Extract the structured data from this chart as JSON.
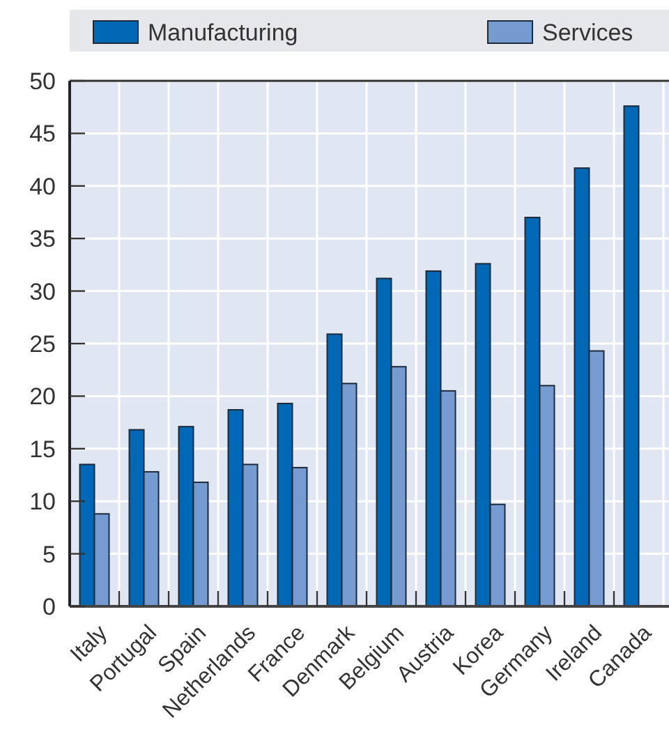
{
  "chart_data": {
    "type": "bar",
    "categories": [
      "Italy",
      "Portugal",
      "Spain",
      "Netherlands",
      "France",
      "Denmark",
      "Belgium",
      "Austria",
      "Korea",
      "Germany",
      "Ireland",
      "Canada"
    ],
    "series": [
      {
        "name": "Manufacturing",
        "color": "#0068b4",
        "values": [
          13.5,
          16.8,
          17.1,
          18.7,
          19.3,
          25.9,
          31.2,
          31.9,
          32.6,
          37.0,
          41.7,
          47.6
        ]
      },
      {
        "name": "Services",
        "color": "#759bd1",
        "values": [
          8.8,
          12.8,
          11.8,
          13.5,
          13.2,
          21.2,
          22.8,
          20.5,
          9.7,
          21.0,
          24.3,
          null
        ]
      }
    ],
    "ylim": [
      0,
      50
    ],
    "yticks": [
      0,
      5,
      10,
      15,
      20,
      25,
      30,
      35,
      40,
      45,
      50
    ],
    "grid": true,
    "legend": "top"
  }
}
